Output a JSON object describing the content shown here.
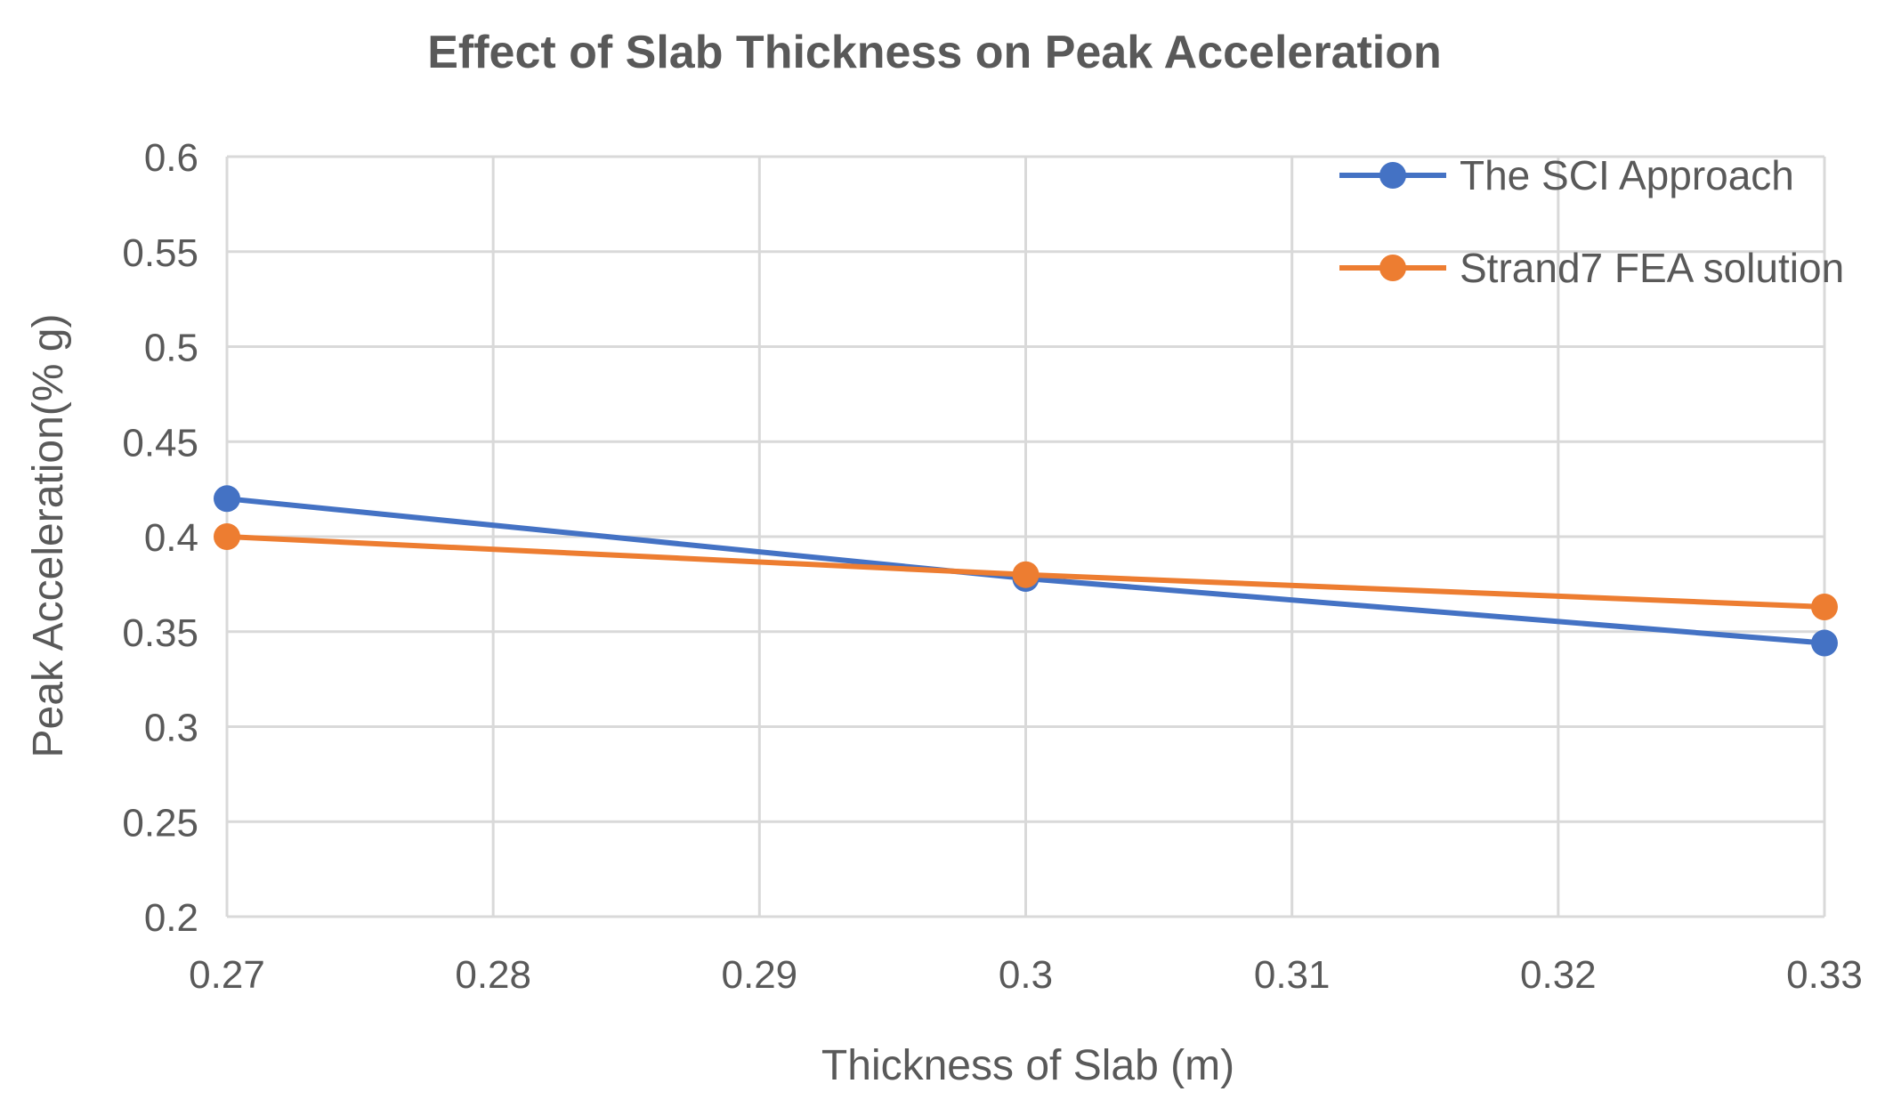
{
  "chart_data": {
    "type": "line",
    "title": "Effect of Slab Thickness on Peak Acceleration",
    "xlabel": "Thickness of Slab (m)",
    "ylabel": "Peak Acceleration(% g)",
    "xlim": [
      0.27,
      0.33
    ],
    "ylim": [
      0.2,
      0.6
    ],
    "xticks": [
      0.27,
      0.28,
      0.29,
      0.3,
      0.31,
      0.32,
      0.33
    ],
    "xtick_labels": [
      "0.27",
      "0.28",
      "0.29",
      "0.3",
      "0.31",
      "0.32",
      "0.33"
    ],
    "yticks": [
      0.2,
      0.25,
      0.3,
      0.35,
      0.4,
      0.45,
      0.5,
      0.55,
      0.6
    ],
    "ytick_labels": [
      "0.2",
      "0.25",
      "0.3",
      "0.35",
      "0.4",
      "0.45",
      "0.5",
      "0.55",
      "0.6"
    ],
    "grid": true,
    "legend_position": "top-right",
    "series": [
      {
        "name": "The SCI Approach",
        "color": "#4472C4",
        "x": [
          0.27,
          0.3,
          0.33
        ],
        "y": [
          0.42,
          0.378,
          0.344
        ]
      },
      {
        "name": "Strand7 FEA solution",
        "color": "#ED7D31",
        "x": [
          0.27,
          0.3,
          0.33
        ],
        "y": [
          0.4,
          0.38,
          0.363
        ]
      }
    ]
  }
}
